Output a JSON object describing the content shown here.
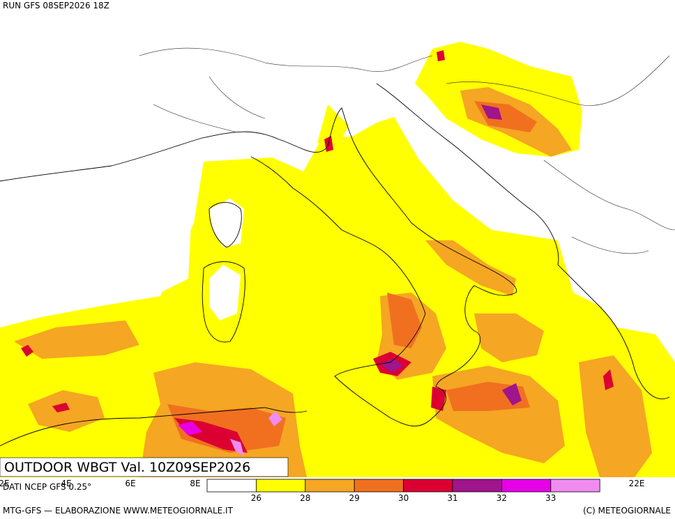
{
  "header": {
    "run": "RUN GFS 08SEP2026 18Z"
  },
  "title": "OUTDOOR WBGT Val. 10Z09SEP2026",
  "source": "DATI NCEP GFS 0.25°",
  "longitude_labels": [
    "2E",
    "4E",
    "6E",
    "8E",
    "22E"
  ],
  "legend": {
    "colors": [
      "#ffffff",
      "#ffff00",
      "#f5a623",
      "#f07020",
      "#dc0032",
      "#a0148c",
      "#e600e6",
      "#f08cf0"
    ],
    "ticks": [
      26,
      28,
      29,
      30,
      31,
      32,
      33
    ]
  },
  "footer": {
    "left": "MTG-GFS — ELABORAZIONE WWW.METEOGIORNALE.IT",
    "right": "(C) METEOGIORNALE"
  }
}
